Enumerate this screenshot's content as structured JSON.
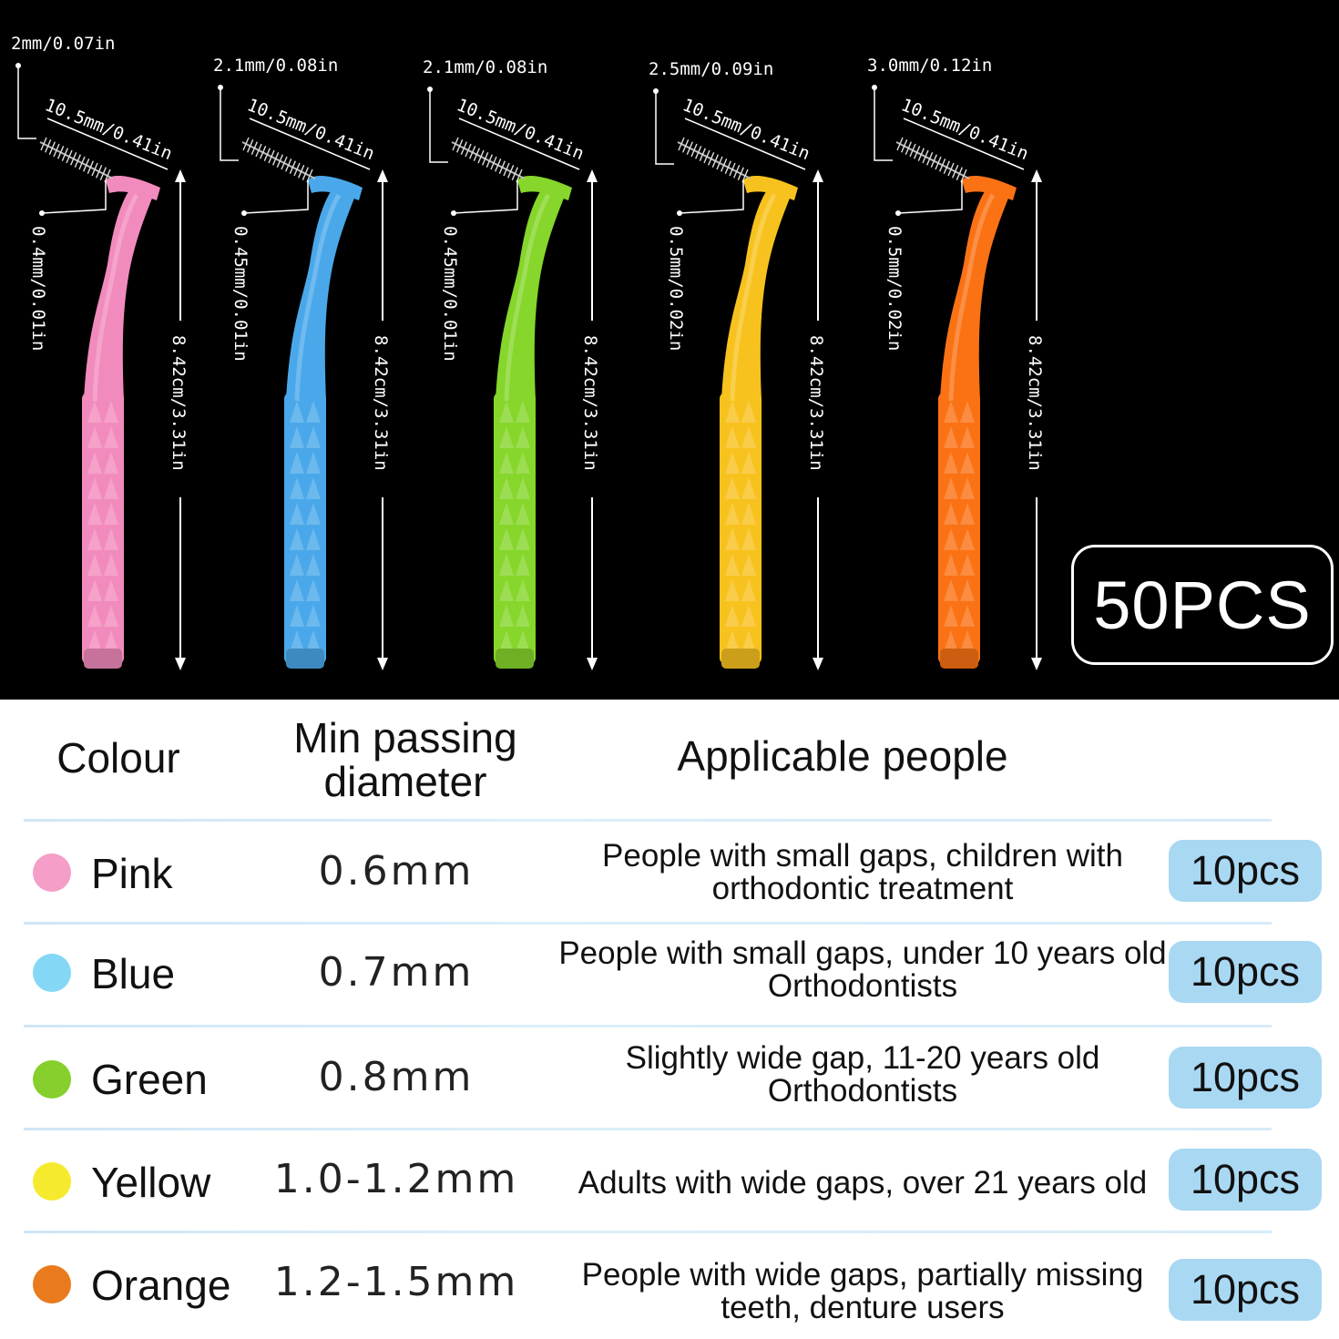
{
  "badge": "50PCS",
  "brushes": [
    {
      "color": "#f28bbd",
      "tip": "2mm/0.07in",
      "length": "10.5mm/0.41in",
      "wire": "0.4mm/0.01in",
      "total": "8.42cm/3.31in"
    },
    {
      "color": "#4aa8ea",
      "tip": "2.1mm/0.08in",
      "length": "10.5mm/0.41in",
      "wire": "0.45mm/0.01in",
      "total": "8.42cm/3.31in"
    },
    {
      "color": "#86d62b",
      "tip": "2.1mm/0.08in",
      "length": "10.5mm/0.41in",
      "wire": "0.45mm/0.01in",
      "total": "8.42cm/3.31in"
    },
    {
      "color": "#f8c21e",
      "tip": "2.5mm/0.09in",
      "length": "10.5mm/0.41in",
      "wire": "0.5mm/0.02in",
      "total": "8.42cm/3.31in"
    },
    {
      "color": "#fa7214",
      "tip": "3.0mm/0.12in",
      "length": "10.5mm/0.41in",
      "wire": "0.5mm/0.02in",
      "total": "8.42cm/3.31in"
    }
  ],
  "table": {
    "headers": {
      "colour": "Colour",
      "diameter_line1": "Min passing",
      "diameter_line2": "diameter",
      "people": "Applicable people"
    },
    "rows": [
      {
        "dot": "#f59ec7",
        "colour": "Pink",
        "diameter": "0.6mm",
        "people": "People with small gaps, children with orthodontic treatment",
        "qty": "10pcs"
      },
      {
        "dot": "#84d8f5",
        "colour": "Blue",
        "diameter": "0.7mm",
        "people": "People with small gaps, under 10 years old Orthodontists",
        "qty": "10pcs"
      },
      {
        "dot": "#86cf2c",
        "colour": "Green",
        "diameter": "0.8mm",
        "people": "Slightly wide gap, 11-20 years old Orthodontists",
        "qty": "10pcs"
      },
      {
        "dot": "#f6ea2e",
        "colour": "Yellow",
        "diameter": "1.0-1.2mm",
        "people": "Adults with wide gaps, over 21 years old",
        "qty": "10pcs"
      },
      {
        "dot": "#e97a1d",
        "colour": "Orange",
        "diameter": "1.2-1.5mm",
        "people": "People with wide gaps, partially missing teeth, denture users",
        "qty": "10pcs"
      }
    ]
  }
}
